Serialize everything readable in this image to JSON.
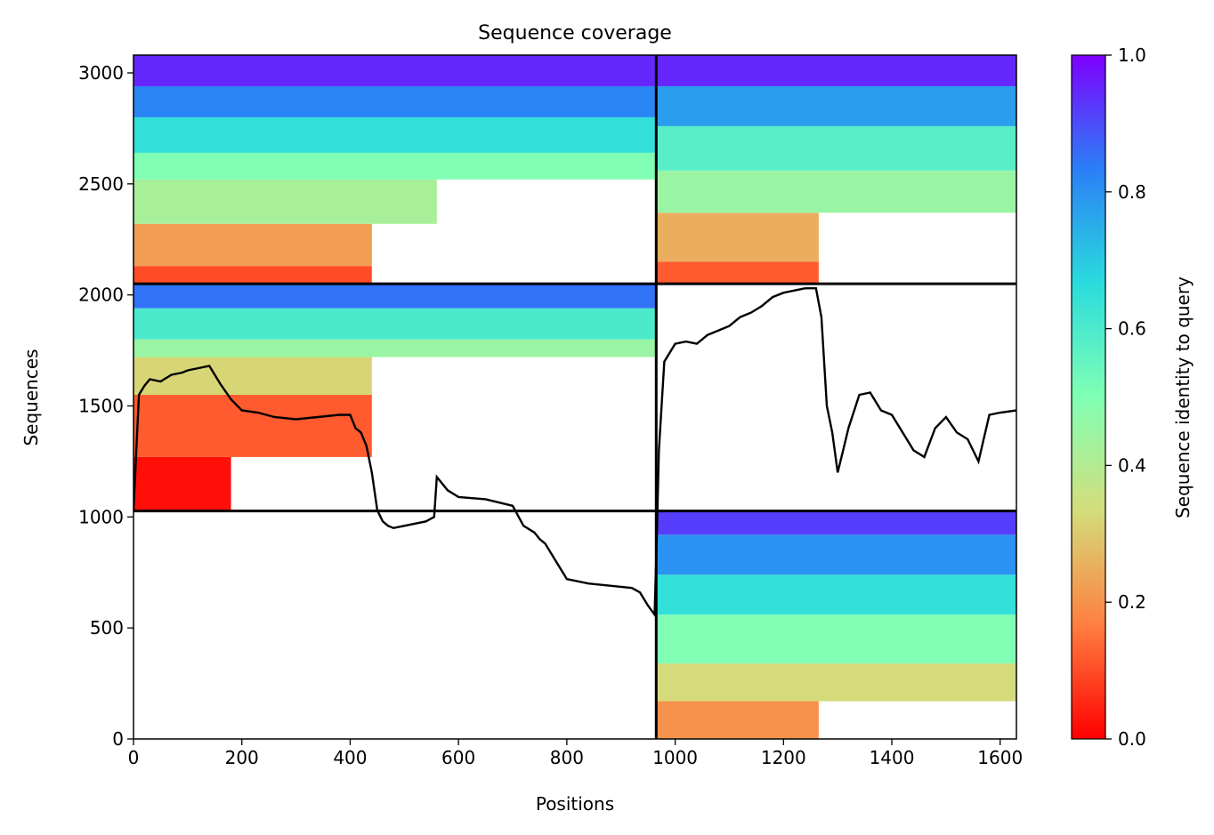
{
  "chart_data": {
    "type": "heatmap",
    "title": "Sequence coverage",
    "xlabel": "Positions",
    "ylabel": "Sequences",
    "xlim": [
      0,
      1630
    ],
    "ylim": [
      0,
      3080
    ],
    "xticks": [
      0,
      200,
      400,
      600,
      800,
      1000,
      1200,
      1400,
      1600
    ],
    "yticks": [
      0,
      500,
      1000,
      1500,
      2000,
      2500,
      3000
    ],
    "colorbar": {
      "label": "Sequence identity to query",
      "range": [
        0,
        1
      ],
      "ticks": [
        0.0,
        0.2,
        0.4,
        0.6,
        0.8,
        1.0
      ],
      "tick_labels": [
        "0.0",
        "0.2",
        "0.4",
        "0.6",
        "0.8",
        "1.0"
      ],
      "colormap": "rainbow",
      "colors": [
        "#ff0000",
        "#ff7f40",
        "#d4dd7b",
        "#80ffb4",
        "#2adcdd",
        "#2a7ff6",
        "#7f00ff"
      ]
    },
    "chain_boundaries": {
      "x": [
        965
      ],
      "y": [
        1027,
        2050
      ]
    },
    "msa_blocks": [
      {
        "x_range": [
          0,
          965
        ],
        "y_range": [
          2050,
          3080
        ],
        "bands": [
          {
            "y_range": [
              2050,
              2130
            ],
            "x_range": [
              0,
              440
            ],
            "identity": 0.1
          },
          {
            "y_range": [
              2130,
              2320
            ],
            "x_range": [
              0,
              440
            ],
            "identity": 0.22
          },
          {
            "y_range": [
              2320,
              2520
            ],
            "x_range": [
              0,
              560
            ],
            "identity": 0.42
          },
          {
            "y_range": [
              2520,
              2640
            ],
            "x_range": [
              0,
              965
            ],
            "identity": 0.5
          },
          {
            "y_range": [
              2640,
              2800
            ],
            "x_range": [
              0,
              965
            ],
            "identity": 0.65
          },
          {
            "y_range": [
              2800,
              2940
            ],
            "x_range": [
              0,
              965
            ],
            "identity": 0.82
          },
          {
            "y_range": [
              2940,
              3080
            ],
            "x_range": [
              0,
              965
            ],
            "identity": 0.95
          }
        ]
      },
      {
        "x_range": [
          965,
          1630
        ],
        "y_range": [
          2050,
          3080
        ],
        "bands": [
          {
            "y_range": [
              2050,
              2150
            ],
            "x_range": [
              965,
              1265
            ],
            "identity": 0.12
          },
          {
            "y_range": [
              2150,
              2370
            ],
            "x_range": [
              965,
              1265
            ],
            "identity": 0.25
          },
          {
            "y_range": [
              2370,
              2560
            ],
            "x_range": [
              965,
              1630
            ],
            "identity": 0.45
          },
          {
            "y_range": [
              2560,
              2760
            ],
            "x_range": [
              965,
              1630
            ],
            "identity": 0.58
          },
          {
            "y_range": [
              2760,
              2940
            ],
            "x_range": [
              965,
              1630
            ],
            "identity": 0.78
          },
          {
            "y_range": [
              2940,
              3080
            ],
            "x_range": [
              965,
              1630
            ],
            "identity": 0.95
          }
        ]
      },
      {
        "x_range": [
          0,
          965
        ],
        "y_range": [
          1027,
          2050
        ],
        "bands": [
          {
            "y_range": [
              1027,
              1270
            ],
            "x_range": [
              0,
              180
            ],
            "identity": 0.02
          },
          {
            "y_range": [
              1270,
              1550
            ],
            "x_range": [
              0,
              440
            ],
            "identity": 0.12
          },
          {
            "y_range": [
              1550,
              1720
            ],
            "x_range": [
              0,
              440
            ],
            "identity": 0.32
          },
          {
            "y_range": [
              1720,
              1800
            ],
            "x_range": [
              0,
              965
            ],
            "identity": 0.45
          },
          {
            "y_range": [
              1800,
              1940
            ],
            "x_range": [
              0,
              965
            ],
            "identity": 0.6
          },
          {
            "y_range": [
              1940,
              2050
            ],
            "x_range": [
              0,
              965
            ],
            "identity": 0.85
          }
        ]
      },
      {
        "x_range": [
          965,
          1630
        ],
        "y_range": [
          0,
          1027
        ],
        "bands": [
          {
            "y_range": [
              0,
              170
            ],
            "x_range": [
              965,
              1265
            ],
            "identity": 0.2
          },
          {
            "y_range": [
              170,
              340
            ],
            "x_range": [
              965,
              1630
            ],
            "identity": 0.33
          },
          {
            "y_range": [
              340,
              560
            ],
            "x_range": [
              965,
              1630
            ],
            "identity": 0.5
          },
          {
            "y_range": [
              560,
              740
            ],
            "x_range": [
              965,
              1630
            ],
            "identity": 0.65
          },
          {
            "y_range": [
              740,
              920
            ],
            "x_range": [
              965,
              1630
            ],
            "identity": 0.8
          },
          {
            "y_range": [
              920,
              1027
            ],
            "x_range": [
              965,
              1630
            ],
            "identity": 0.92
          }
        ]
      }
    ],
    "coverage_line": {
      "color": "#000000",
      "x": [
        0,
        10,
        20,
        30,
        50,
        70,
        90,
        100,
        120,
        140,
        160,
        180,
        200,
        230,
        260,
        300,
        340,
        380,
        400,
        410,
        420,
        430,
        440,
        450,
        460,
        470,
        480,
        500,
        520,
        540,
        555,
        560,
        580,
        600,
        650,
        700,
        720,
        740,
        750,
        760,
        800,
        840,
        880,
        920,
        935,
        950,
        962,
        966,
        970,
        980,
        1000,
        1020,
        1040,
        1060,
        1080,
        1100,
        1120,
        1140,
        1160,
        1180,
        1200,
        1220,
        1240,
        1260,
        1270,
        1280,
        1290,
        1300,
        1310,
        1320,
        1340,
        1360,
        1380,
        1400,
        1420,
        1440,
        1460,
        1480,
        1500,
        1520,
        1540,
        1560,
        1580,
        1600,
        1630
      ],
      "y": [
        1030,
        1550,
        1590,
        1620,
        1610,
        1640,
        1650,
        1660,
        1670,
        1680,
        1600,
        1530,
        1480,
        1470,
        1450,
        1440,
        1450,
        1460,
        1460,
        1400,
        1380,
        1320,
        1200,
        1030,
        980,
        960,
        950,
        960,
        970,
        980,
        1000,
        1180,
        1120,
        1090,
        1080,
        1050,
        960,
        930,
        900,
        880,
        720,
        700,
        690,
        680,
        660,
        600,
        560,
        900,
        1300,
        1700,
        1780,
        1790,
        1780,
        1820,
        1840,
        1860,
        1900,
        1920,
        1950,
        1990,
        2010,
        2020,
        2030,
        2030,
        1900,
        1500,
        1380,
        1200,
        1300,
        1400,
        1550,
        1560,
        1480,
        1460,
        1380,
        1300,
        1270,
        1400,
        1450,
        1380,
        1350,
        1250,
        1460,
        1470,
        1480
      ]
    }
  }
}
